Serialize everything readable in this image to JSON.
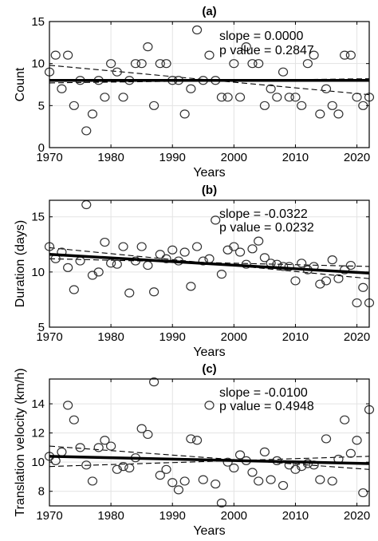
{
  "chart_data": [
    {
      "type": "scatter",
      "title": "(a)",
      "xlabel": "Years",
      "ylabel": "Count",
      "xlim": [
        1970,
        2022
      ],
      "ylim": [
        0,
        15
      ],
      "xticks": [
        1970,
        1980,
        1990,
        2000,
        2010,
        2020
      ],
      "yticks": [
        0,
        5,
        10,
        15
      ],
      "grid": true,
      "annotations": {
        "slope": "slope = 0.0000",
        "pvalue": "p value = 0.2847"
      },
      "points": [
        {
          "x": 1970,
          "y": 9
        },
        {
          "x": 1971,
          "y": 11
        },
        {
          "x": 1972,
          "y": 7
        },
        {
          "x": 1973,
          "y": 11
        },
        {
          "x": 1974,
          "y": 5
        },
        {
          "x": 1975,
          "y": 8
        },
        {
          "x": 1976,
          "y": 2
        },
        {
          "x": 1977,
          "y": 4
        },
        {
          "x": 1978,
          "y": 8
        },
        {
          "x": 1979,
          "y": 6
        },
        {
          "x": 1980,
          "y": 10
        },
        {
          "x": 1981,
          "y": 9
        },
        {
          "x": 1982,
          "y": 6
        },
        {
          "x": 1983,
          "y": 8
        },
        {
          "x": 1984,
          "y": 10
        },
        {
          "x": 1985,
          "y": 10
        },
        {
          "x": 1986,
          "y": 12
        },
        {
          "x": 1987,
          "y": 5
        },
        {
          "x": 1988,
          "y": 10
        },
        {
          "x": 1989,
          "y": 10
        },
        {
          "x": 1990,
          "y": 8
        },
        {
          "x": 1991,
          "y": 8
        },
        {
          "x": 1992,
          "y": 4
        },
        {
          "x": 1993,
          "y": 7
        },
        {
          "x": 1994,
          "y": 14
        },
        {
          "x": 1995,
          "y": 8
        },
        {
          "x": 1996,
          "y": 11
        },
        {
          "x": 1997,
          "y": 8
        },
        {
          "x": 1998,
          "y": 6
        },
        {
          "x": 1999,
          "y": 6
        },
        {
          "x": 2000,
          "y": 10
        },
        {
          "x": 2001,
          "y": 6
        },
        {
          "x": 2002,
          "y": 12
        },
        {
          "x": 2003,
          "y": 10
        },
        {
          "x": 2004,
          "y": 10
        },
        {
          "x": 2005,
          "y": 5
        },
        {
          "x": 2006,
          "y": 7
        },
        {
          "x": 2007,
          "y": 6
        },
        {
          "x": 2008,
          "y": 9
        },
        {
          "x": 2009,
          "y": 6
        },
        {
          "x": 2010,
          "y": 6
        },
        {
          "x": 2011,
          "y": 5
        },
        {
          "x": 2012,
          "y": 10
        },
        {
          "x": 2013,
          "y": 11
        },
        {
          "x": 2014,
          "y": 4
        },
        {
          "x": 2015,
          "y": 7
        },
        {
          "x": 2016,
          "y": 5
        },
        {
          "x": 2017,
          "y": 4
        },
        {
          "x": 2018,
          "y": 11
        },
        {
          "x": 2019,
          "y": 11
        },
        {
          "x": 2020,
          "y": 6
        },
        {
          "x": 2021,
          "y": 5
        },
        {
          "x": 2022,
          "y": 6
        }
      ],
      "trend": {
        "x": [
          1970,
          2022
        ],
        "y": [
          8,
          8
        ]
      },
      "ci_upper": {
        "x": [
          1970,
          2022
        ],
        "y": [
          9.8,
          6.3
        ]
      },
      "ci_lower": {
        "x": [
          1970,
          2022
        ],
        "y": [
          7.7,
          8.2
        ]
      }
    },
    {
      "type": "scatter",
      "title": "(b)",
      "xlabel": "Years",
      "ylabel": "Duration (days)",
      "xlim": [
        1970,
        2022
      ],
      "ylim": [
        5,
        16.5
      ],
      "xticks": [
        1970,
        1980,
        1990,
        2000,
        2010,
        2020
      ],
      "yticks": [
        5,
        10,
        15
      ],
      "grid": true,
      "annotations": {
        "slope": "slope = -0.0322",
        "pvalue": "p value = 0.0232"
      },
      "points": [
        {
          "x": 1970,
          "y": 12.3
        },
        {
          "x": 1971,
          "y": 11.2
        },
        {
          "x": 1972,
          "y": 11.8
        },
        {
          "x": 1973,
          "y": 10.4
        },
        {
          "x": 1974,
          "y": 8.4
        },
        {
          "x": 1975,
          "y": 11
        },
        {
          "x": 1976,
          "y": 16.1
        },
        {
          "x": 1977,
          "y": 9.7
        },
        {
          "x": 1978,
          "y": 10
        },
        {
          "x": 1979,
          "y": 12.7
        },
        {
          "x": 1980,
          "y": 10.8
        },
        {
          "x": 1981,
          "y": 10.7
        },
        {
          "x": 1982,
          "y": 12.3
        },
        {
          "x": 1983,
          "y": 8.1
        },
        {
          "x": 1984,
          "y": 11
        },
        {
          "x": 1985,
          "y": 12.3
        },
        {
          "x": 1986,
          "y": 10.6
        },
        {
          "x": 1987,
          "y": 8.2
        },
        {
          "x": 1988,
          "y": 11.6
        },
        {
          "x": 1989,
          "y": 11.2
        },
        {
          "x": 1990,
          "y": 12
        },
        {
          "x": 1991,
          "y": 11
        },
        {
          "x": 1992,
          "y": 11.8
        },
        {
          "x": 1993,
          "y": 8.7
        },
        {
          "x": 1994,
          "y": 12.3
        },
        {
          "x": 1995,
          "y": 11
        },
        {
          "x": 1996,
          "y": 11.2
        },
        {
          "x": 1997,
          "y": 14.7
        },
        {
          "x": 1998,
          "y": 9.8
        },
        {
          "x": 1999,
          "y": 12
        },
        {
          "x": 2000,
          "y": 12.3
        },
        {
          "x": 2001,
          "y": 11.8
        },
        {
          "x": 2002,
          "y": 10.7
        },
        {
          "x": 2003,
          "y": 12.1
        },
        {
          "x": 2004,
          "y": 12.8
        },
        {
          "x": 2005,
          "y": 11.3
        },
        {
          "x": 2006,
          "y": 10.8
        },
        {
          "x": 2007,
          "y": 10.7
        },
        {
          "x": 2008,
          "y": 10.5
        },
        {
          "x": 2009,
          "y": 10.5
        },
        {
          "x": 2010,
          "y": 9.2
        },
        {
          "x": 2011,
          "y": 10.8
        },
        {
          "x": 2012,
          "y": 10.2
        },
        {
          "x": 2013,
          "y": 10.5
        },
        {
          "x": 2014,
          "y": 8.9
        },
        {
          "x": 2015,
          "y": 9.2
        },
        {
          "x": 2016,
          "y": 11.1
        },
        {
          "x": 2017,
          "y": 9.4
        },
        {
          "x": 2018,
          "y": 10.2
        },
        {
          "x": 2019,
          "y": 10.6
        },
        {
          "x": 2020,
          "y": 7.2
        },
        {
          "x": 2021,
          "y": 8.6
        },
        {
          "x": 2022,
          "y": 7.2
        }
      ],
      "trend": {
        "x": [
          1970,
          2022
        ],
        "y": [
          11.6,
          9.9
        ]
      },
      "ci_upper": {
        "x": [
          1970,
          2022
        ],
        "y": [
          12.2,
          9.4
        ]
      },
      "ci_lower": {
        "x": [
          1970,
          2022
        ],
        "y": [
          11.2,
          10.5
        ]
      }
    },
    {
      "type": "scatter",
      "title": "(c)",
      "xlabel": "Years",
      "ylabel": "Translation velocity (km/h)",
      "xlim": [
        1970,
        2022
      ],
      "ylim": [
        7,
        15.7
      ],
      "xticks": [
        1970,
        1980,
        1990,
        2000,
        2010,
        2020
      ],
      "yticks": [
        8,
        10,
        12,
        14
      ],
      "grid": true,
      "annotations": {
        "slope": "slope = -0.0100",
        "pvalue": "p value = 0.4948"
      },
      "points": [
        {
          "x": 1970,
          "y": 10.4
        },
        {
          "x": 1971,
          "y": 10.1
        },
        {
          "x": 1972,
          "y": 10.7
        },
        {
          "x": 1973,
          "y": 13.9
        },
        {
          "x": 1974,
          "y": 12.9
        },
        {
          "x": 1975,
          "y": 11
        },
        {
          "x": 1976,
          "y": 9.8
        },
        {
          "x": 1977,
          "y": 8.7
        },
        {
          "x": 1978,
          "y": 11
        },
        {
          "x": 1979,
          "y": 11.5
        },
        {
          "x": 1980,
          "y": 11.1
        },
        {
          "x": 1981,
          "y": 9.5
        },
        {
          "x": 1982,
          "y": 9.7
        },
        {
          "x": 1983,
          "y": 9.6
        },
        {
          "x": 1984,
          "y": 10.3
        },
        {
          "x": 1985,
          "y": 12.3
        },
        {
          "x": 1986,
          "y": 11.9
        },
        {
          "x": 1987,
          "y": 15.5
        },
        {
          "x": 1988,
          "y": 9.1
        },
        {
          "x": 1989,
          "y": 9.5
        },
        {
          "x": 1990,
          "y": 8.6
        },
        {
          "x": 1991,
          "y": 8.1
        },
        {
          "x": 1992,
          "y": 8.7
        },
        {
          "x": 1993,
          "y": 11.6
        },
        {
          "x": 1994,
          "y": 11.5
        },
        {
          "x": 1995,
          "y": 8.8
        },
        {
          "x": 1996,
          "y": 13.9
        },
        {
          "x": 1997,
          "y": 8.5
        },
        {
          "x": 1998,
          "y": 7.2
        },
        {
          "x": 1999,
          "y": 10
        },
        {
          "x": 2000,
          "y": 9.6
        },
        {
          "x": 2001,
          "y": 10.5
        },
        {
          "x": 2002,
          "y": 10.1
        },
        {
          "x": 2003,
          "y": 9.3
        },
        {
          "x": 2004,
          "y": 8.7
        },
        {
          "x": 2005,
          "y": 10.7
        },
        {
          "x": 2006,
          "y": 8.8
        },
        {
          "x": 2007,
          "y": 10.1
        },
        {
          "x": 2008,
          "y": 8.4
        },
        {
          "x": 2009,
          "y": 9.8
        },
        {
          "x": 2010,
          "y": 9.5
        },
        {
          "x": 2011,
          "y": 9.7
        },
        {
          "x": 2012,
          "y": 9.9
        },
        {
          "x": 2013,
          "y": 9.8
        },
        {
          "x": 2014,
          "y": 8.8
        },
        {
          "x": 2015,
          "y": 11.6
        },
        {
          "x": 2016,
          "y": 8.7
        },
        {
          "x": 2017,
          "y": 10.2
        },
        {
          "x": 2018,
          "y": 12.9
        },
        {
          "x": 2019,
          "y": 10.6
        },
        {
          "x": 2020,
          "y": 11.5
        },
        {
          "x": 2021,
          "y": 7.9
        },
        {
          "x": 2022,
          "y": 13.6
        }
      ],
      "trend": {
        "x": [
          1970,
          2022
        ],
        "y": [
          10.4,
          9.9
        ]
      },
      "ci_upper": {
        "x": [
          1970,
          2022
        ],
        "y": [
          11.1,
          9.5
        ]
      },
      "ci_lower": {
        "x": [
          1970,
          2022
        ],
        "y": [
          9.7,
          10.4
        ]
      }
    }
  ]
}
